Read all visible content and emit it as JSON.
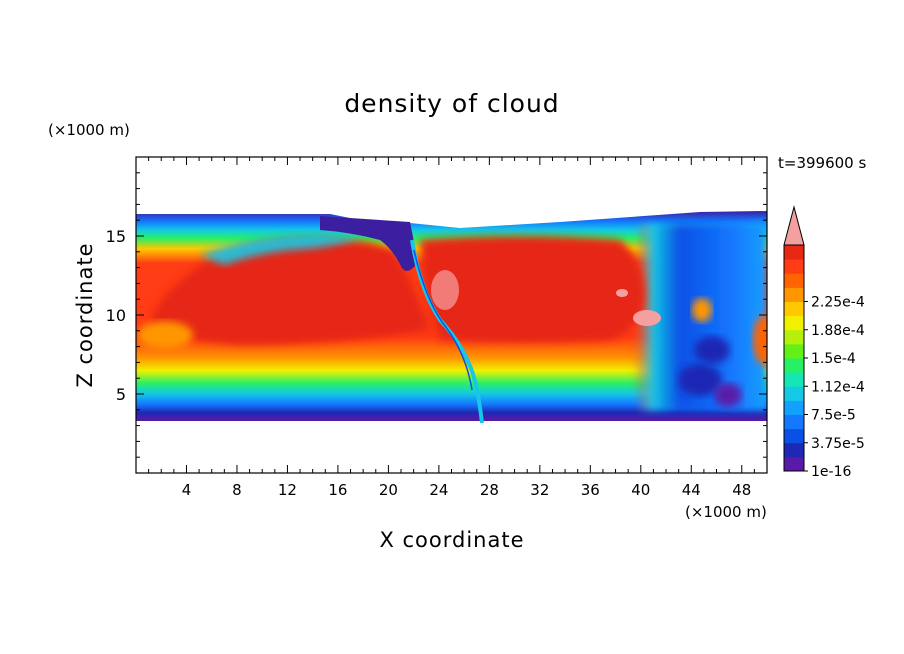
{
  "chart_data": {
    "type": "heatmap",
    "title": "density of cloud",
    "time_label": "t=399600 s",
    "xlabel": "X coordinate",
    "ylabel": "Z coordinate",
    "x_unit": "(×1000 m)",
    "y_unit": "(×1000 m)",
    "xlim": [
      0,
      50
    ],
    "ylim": [
      0,
      20
    ],
    "x_ticks": [
      4,
      8,
      12,
      16,
      20,
      24,
      28,
      32,
      36,
      40,
      44,
      48
    ],
    "y_ticks": [
      5,
      10,
      15
    ],
    "colorbar": {
      "levels": [
        "1e-16",
        "3.75e-5",
        "7.5e-5",
        "1.12e-4",
        "1.5e-4",
        "1.88e-4",
        "2.25e-4"
      ],
      "colors": [
        "#5a1aa8",
        "#1e28b4",
        "#0a50e6",
        "#1478ff",
        "#14a0ff",
        "#14c8e6",
        "#14e6b4",
        "#28f064",
        "#64f014",
        "#b4f00a",
        "#f0f000",
        "#ffc800",
        "#ff9600",
        "#ff6400",
        "#ff3c14",
        "#e62814"
      ],
      "overflow_color": "#f5a0a0"
    },
    "cloud_layer": {
      "bottom_km": 3.4,
      "top_km": 16.2
    },
    "field_description": [
      {
        "x": [
          0,
          20
        ],
        "z_core": [
          6.5,
          13.5
        ],
        "level": "max"
      },
      {
        "x": [
          22,
          40
        ],
        "z_core": [
          6,
          15
        ],
        "level": "max"
      },
      {
        "x": [
          40,
          50
        ],
        "z_core": [
          5,
          15
        ],
        "level": "low"
      }
    ]
  }
}
